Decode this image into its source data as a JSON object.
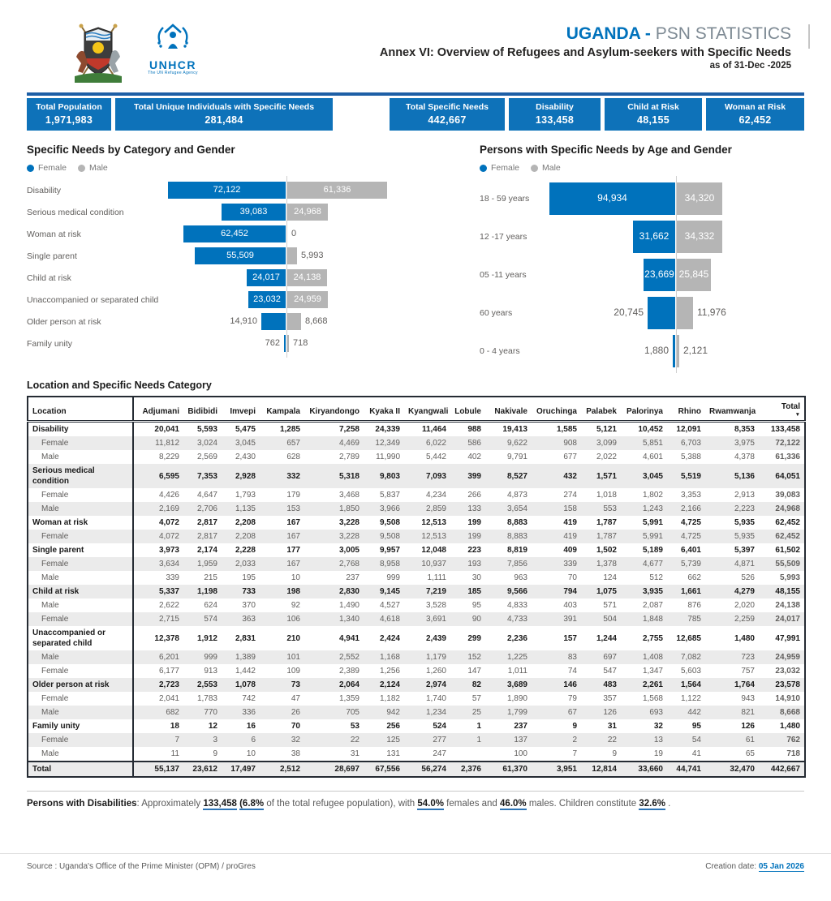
{
  "header": {
    "title_country": "UGANDA",
    "title_dash": " - ",
    "title_rest": "PSN STATISTICS",
    "subtitle": "Annex VI: Overview of Refugees and Asylum-seekers with Specific Needs",
    "as_of": "as of 31-Dec -2025",
    "unhcr_logo_word": "UNHCR",
    "unhcr_logo_tagline": "The UN Refugee Agency"
  },
  "colors": {
    "brand_blue": "#0072BC",
    "bar_gray": "#B5B5B5",
    "rule_blue": "#1D5FA6"
  },
  "kpis": [
    {
      "label": "Total Population",
      "value": "1,971,983"
    },
    {
      "label": "Total Unique Individuals with Specific Needs",
      "value": "281,484"
    },
    {
      "label": "Total Specific Needs",
      "value": "442,667"
    },
    {
      "label": "Disability",
      "value": "133,458"
    },
    {
      "label": "Child at Risk",
      "value": "48,155"
    },
    {
      "label": "Woman at Risk",
      "value": "62,452"
    }
  ],
  "chart_data": [
    {
      "type": "bar",
      "subtype": "diverging-tornado",
      "title": "Specific Needs by Category and Gender",
      "legend": [
        "Female",
        "Male"
      ],
      "legend_position": "top-left",
      "categories": [
        "Disability",
        "Serious medical condition",
        "Woman at risk",
        "Single parent",
        "Child at risk",
        "Unaccompanied or separated child",
        "Older person at risk",
        "Family unity"
      ],
      "series": [
        {
          "name": "Female",
          "color": "#0072BC",
          "values": [
            72122,
            39083,
            62452,
            55509,
            24017,
            23032,
            14910,
            762
          ]
        },
        {
          "name": "Male",
          "color": "#B5B5B5",
          "values": [
            61336,
            24968,
            0,
            5993,
            24138,
            24959,
            8668,
            718
          ]
        }
      ]
    },
    {
      "type": "bar",
      "subtype": "diverging-tornado",
      "title": "Persons with Specific Needs by Age and Gender",
      "legend": [
        "Female",
        "Male"
      ],
      "legend_position": "top-left",
      "categories": [
        "18 - 59 years",
        "12 -17 years",
        "05 -11 years",
        "60 years",
        "0 - 4 years"
      ],
      "series": [
        {
          "name": "Female",
          "color": "#0072BC",
          "values": [
            94934,
            31662,
            23669,
            20745,
            1880
          ]
        },
        {
          "name": "Male",
          "color": "#B5B5B5",
          "values": [
            34320,
            34332,
            25845,
            11976,
            2121
          ]
        }
      ]
    }
  ],
  "table": {
    "title": "Location and Specific Needs Category",
    "columns": [
      "Location",
      "Adjumani",
      "Bidibidi",
      "Imvepi",
      "Kampala",
      "Kiryandongo",
      "Kyaka II",
      "Kyangwali",
      "Lobule",
      "Nakivale",
      "Oruchinga",
      "Palabek",
      "Palorinya",
      "Rhino",
      "Rwamwanja",
      "Total"
    ],
    "sorted_column": "Total",
    "rows": [
      {
        "label": "Disability",
        "level": "category",
        "values": [
          "20,041",
          "5,593",
          "5,475",
          "1,285",
          "7,258",
          "24,339",
          "11,464",
          "988",
          "19,413",
          "1,585",
          "5,121",
          "10,452",
          "12,091",
          "8,353",
          "133,458"
        ]
      },
      {
        "label": "Female",
        "level": "sub",
        "values": [
          "11,812",
          "3,024",
          "3,045",
          "657",
          "4,469",
          "12,349",
          "6,022",
          "586",
          "9,622",
          "908",
          "3,099",
          "5,851",
          "6,703",
          "3,975",
          "72,122"
        ]
      },
      {
        "label": "Male",
        "level": "sub",
        "values": [
          "8,229",
          "2,569",
          "2,430",
          "628",
          "2,789",
          "11,990",
          "5,442",
          "402",
          "9,791",
          "677",
          "2,022",
          "4,601",
          "5,388",
          "4,378",
          "61,336"
        ]
      },
      {
        "label": "Serious medical condition",
        "level": "category",
        "values": [
          "6,595",
          "7,353",
          "2,928",
          "332",
          "5,318",
          "9,803",
          "7,093",
          "399",
          "8,527",
          "432",
          "1,571",
          "3,045",
          "5,519",
          "5,136",
          "64,051"
        ]
      },
      {
        "label": "Female",
        "level": "sub",
        "values": [
          "4,426",
          "4,647",
          "1,793",
          "179",
          "3,468",
          "5,837",
          "4,234",
          "266",
          "4,873",
          "274",
          "1,018",
          "1,802",
          "3,353",
          "2,913",
          "39,083"
        ]
      },
      {
        "label": "Male",
        "level": "sub",
        "values": [
          "2,169",
          "2,706",
          "1,135",
          "153",
          "1,850",
          "3,966",
          "2,859",
          "133",
          "3,654",
          "158",
          "553",
          "1,243",
          "2,166",
          "2,223",
          "24,968"
        ]
      },
      {
        "label": "Woman at risk",
        "level": "category",
        "values": [
          "4,072",
          "2,817",
          "2,208",
          "167",
          "3,228",
          "9,508",
          "12,513",
          "199",
          "8,883",
          "419",
          "1,787",
          "5,991",
          "4,725",
          "5,935",
          "62,452"
        ]
      },
      {
        "label": "Female",
        "level": "sub",
        "values": [
          "4,072",
          "2,817",
          "2,208",
          "167",
          "3,228",
          "9,508",
          "12,513",
          "199",
          "8,883",
          "419",
          "1,787",
          "5,991",
          "4,725",
          "5,935",
          "62,452"
        ]
      },
      {
        "label": "Single parent",
        "level": "category",
        "values": [
          "3,973",
          "2,174",
          "2,228",
          "177",
          "3,005",
          "9,957",
          "12,048",
          "223",
          "8,819",
          "409",
          "1,502",
          "5,189",
          "6,401",
          "5,397",
          "61,502"
        ]
      },
      {
        "label": "Female",
        "level": "sub",
        "values": [
          "3,634",
          "1,959",
          "2,033",
          "167",
          "2,768",
          "8,958",
          "10,937",
          "193",
          "7,856",
          "339",
          "1,378",
          "4,677",
          "5,739",
          "4,871",
          "55,509"
        ]
      },
      {
        "label": "Male",
        "level": "sub",
        "values": [
          "339",
          "215",
          "195",
          "10",
          "237",
          "999",
          "1,111",
          "30",
          "963",
          "70",
          "124",
          "512",
          "662",
          "526",
          "5,993"
        ]
      },
      {
        "label": "Child at risk",
        "level": "category",
        "values": [
          "5,337",
          "1,198",
          "733",
          "198",
          "2,830",
          "9,145",
          "7,219",
          "185",
          "9,566",
          "794",
          "1,075",
          "3,935",
          "1,661",
          "4,279",
          "48,155"
        ]
      },
      {
        "label": "Male",
        "level": "sub",
        "values": [
          "2,622",
          "624",
          "370",
          "92",
          "1,490",
          "4,527",
          "3,528",
          "95",
          "4,833",
          "403",
          "571",
          "2,087",
          "876",
          "2,020",
          "24,138"
        ]
      },
      {
        "label": "Female",
        "level": "sub",
        "values": [
          "2,715",
          "574",
          "363",
          "106",
          "1,340",
          "4,618",
          "3,691",
          "90",
          "4,733",
          "391",
          "504",
          "1,848",
          "785",
          "2,259",
          "24,017"
        ]
      },
      {
        "label": "Unaccompanied or separated child",
        "level": "category",
        "values": [
          "12,378",
          "1,912",
          "2,831",
          "210",
          "4,941",
          "2,424",
          "2,439",
          "299",
          "2,236",
          "157",
          "1,244",
          "2,755",
          "12,685",
          "1,480",
          "47,991"
        ]
      },
      {
        "label": "Male",
        "level": "sub",
        "values": [
          "6,201",
          "999",
          "1,389",
          "101",
          "2,552",
          "1,168",
          "1,179",
          "152",
          "1,225",
          "83",
          "697",
          "1,408",
          "7,082",
          "723",
          "24,959"
        ]
      },
      {
        "label": "Female",
        "level": "sub",
        "values": [
          "6,177",
          "913",
          "1,442",
          "109",
          "2,389",
          "1,256",
          "1,260",
          "147",
          "1,011",
          "74",
          "547",
          "1,347",
          "5,603",
          "757",
          "23,032"
        ]
      },
      {
        "label": "Older person at risk",
        "level": "category",
        "values": [
          "2,723",
          "2,553",
          "1,078",
          "73",
          "2,064",
          "2,124",
          "2,974",
          "82",
          "3,689",
          "146",
          "483",
          "2,261",
          "1,564",
          "1,764",
          "23,578"
        ]
      },
      {
        "label": "Female",
        "level": "sub",
        "values": [
          "2,041",
          "1,783",
          "742",
          "47",
          "1,359",
          "1,182",
          "1,740",
          "57",
          "1,890",
          "79",
          "357",
          "1,568",
          "1,122",
          "943",
          "14,910"
        ]
      },
      {
        "label": "Male",
        "level": "sub",
        "values": [
          "682",
          "770",
          "336",
          "26",
          "705",
          "942",
          "1,234",
          "25",
          "1,799",
          "67",
          "126",
          "693",
          "442",
          "821",
          "8,668"
        ]
      },
      {
        "label": "Family unity",
        "level": "category",
        "values": [
          "18",
          "12",
          "16",
          "70",
          "53",
          "256",
          "524",
          "1",
          "237",
          "9",
          "31",
          "32",
          "95",
          "126",
          "1,480"
        ]
      },
      {
        "label": "Female",
        "level": "sub",
        "values": [
          "7",
          "3",
          "6",
          "32",
          "22",
          "125",
          "277",
          "1",
          "137",
          "2",
          "22",
          "13",
          "54",
          "61",
          "762"
        ]
      },
      {
        "label": "Male",
        "level": "sub",
        "values": [
          "11",
          "9",
          "10",
          "38",
          "31",
          "131",
          "247",
          "",
          "100",
          "7",
          "9",
          "19",
          "41",
          "65",
          "718"
        ]
      },
      {
        "label": "Total",
        "level": "total",
        "values": [
          "55,137",
          "23,612",
          "17,497",
          "2,512",
          "28,697",
          "67,556",
          "56,274",
          "2,376",
          "61,370",
          "3,951",
          "12,814",
          "33,660",
          "44,741",
          "32,470",
          "442,667"
        ]
      }
    ]
  },
  "note": {
    "lead": "Persons with Disabilities",
    "parts": [
      {
        "t": ": ",
        "s": "plain"
      },
      {
        "t": "Approximately ",
        "s": "plain"
      },
      {
        "t": "133,458",
        "s": "value"
      },
      {
        "t": " ",
        "s": "plain"
      },
      {
        "t": "(6.8%",
        "s": "value"
      },
      {
        "t": " of the total refugee population), with ",
        "s": "plain"
      },
      {
        "t": "54.0%",
        "s": "value"
      },
      {
        "t": " females and ",
        "s": "plain"
      },
      {
        "t": "46.0%",
        "s": "value"
      },
      {
        "t": " males. Children constitute ",
        "s": "plain"
      },
      {
        "t": "32.6%",
        "s": "value"
      },
      {
        "t": " .",
        "s": "plain"
      }
    ]
  },
  "footer": {
    "source": "Source : Uganda's Office of the Prime Minister (OPM) / proGres",
    "creation_label": "Creation date: ",
    "creation_date": "05 Jan 2026"
  }
}
